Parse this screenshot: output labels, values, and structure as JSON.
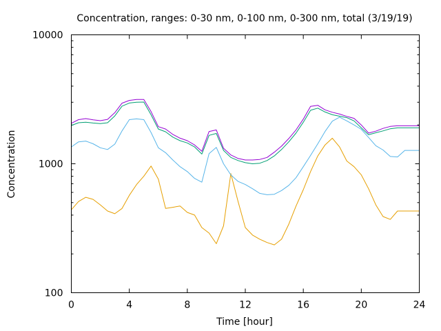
{
  "chart_data": {
    "type": "line",
    "title": "Concentration, ranges: 0-30 nm, 0-100 nm, 0-300 nm, total (3/19/19)",
    "xlabel": "Time [hour]",
    "ylabel": "Concentration",
    "xlim": [
      0,
      24
    ],
    "ylim": [
      100,
      10000
    ],
    "yscale": "log",
    "grid": false,
    "x_ticks": [
      0,
      4,
      8,
      12,
      16,
      20,
      24
    ],
    "x_tick_labels": [
      "0",
      "4",
      "8",
      "12",
      "16",
      "20",
      "24"
    ],
    "y_ticks": [
      100,
      1000,
      10000
    ],
    "y_tick_labels": [
      "100",
      "1000",
      "10000"
    ],
    "minor_y_ticks": true,
    "x": [
      0,
      0.5,
      1,
      1.5,
      2,
      2.5,
      3,
      3.5,
      4,
      4.5,
      5,
      5.5,
      6,
      6.5,
      7,
      7.5,
      8,
      8.5,
      9,
      9.5,
      10,
      10.5,
      11,
      11.5,
      12,
      12.5,
      13,
      13.5,
      14,
      14.5,
      15,
      15.5,
      16,
      16.5,
      17,
      17.5,
      18,
      18.5,
      19,
      19.5,
      20,
      20.5,
      21,
      21.5,
      22,
      22.5,
      23,
      23.5,
      24
    ],
    "series": [
      {
        "color": "#e69f00",
        "values": [
          440,
          510,
          550,
          530,
          480,
          430,
          410,
          450,
          570,
          690,
          800,
          960,
          760,
          450,
          460,
          470,
          420,
          400,
          320,
          290,
          240,
          330,
          840,
          510,
          320,
          280,
          260,
          245,
          235,
          260,
          340,
          470,
          630,
          870,
          1150,
          1400,
          1580,
          1350,
          1050,
          950,
          820,
          640,
          480,
          390,
          370,
          430,
          430,
          430,
          430
        ]
      },
      {
        "color": "#56b4e9",
        "values": [
          1350,
          1480,
          1500,
          1430,
          1330,
          1290,
          1420,
          1800,
          2200,
          2230,
          2200,
          1750,
          1330,
          1220,
          1070,
          950,
          870,
          770,
          720,
          1200,
          1340,
          1000,
          820,
          730,
          690,
          640,
          590,
          575,
          580,
          620,
          680,
          780,
          950,
          1160,
          1430,
          1780,
          2140,
          2300,
          2150,
          2000,
          1850,
          1600,
          1380,
          1280,
          1140,
          1130,
          1270,
          1270,
          1270
        ]
      },
      {
        "color": "#009e73",
        "values": [
          1980,
          2080,
          2100,
          2070,
          2050,
          2080,
          2350,
          2800,
          2960,
          3000,
          3010,
          2400,
          1860,
          1770,
          1610,
          1510,
          1450,
          1350,
          1190,
          1660,
          1720,
          1270,
          1120,
          1060,
          1020,
          1000,
          1010,
          1060,
          1150,
          1290,
          1480,
          1730,
          2100,
          2600,
          2700,
          2520,
          2400,
          2340,
          2280,
          2150,
          1900,
          1680,
          1740,
          1800,
          1870,
          1900,
          1900,
          1900,
          1900
        ]
      },
      {
        "color": "#9400d3",
        "values": [
          2060,
          2200,
          2240,
          2190,
          2160,
          2210,
          2490,
          2950,
          3100,
          3150,
          3150,
          2540,
          1940,
          1860,
          1690,
          1580,
          1510,
          1400,
          1250,
          1780,
          1830,
          1320,
          1170,
          1100,
          1070,
          1070,
          1080,
          1120,
          1230,
          1370,
          1570,
          1830,
          2220,
          2790,
          2840,
          2620,
          2510,
          2430,
          2330,
          2250,
          2000,
          1730,
          1790,
          1880,
          1950,
          1970,
          1970,
          1970,
          1970
        ]
      }
    ]
  }
}
